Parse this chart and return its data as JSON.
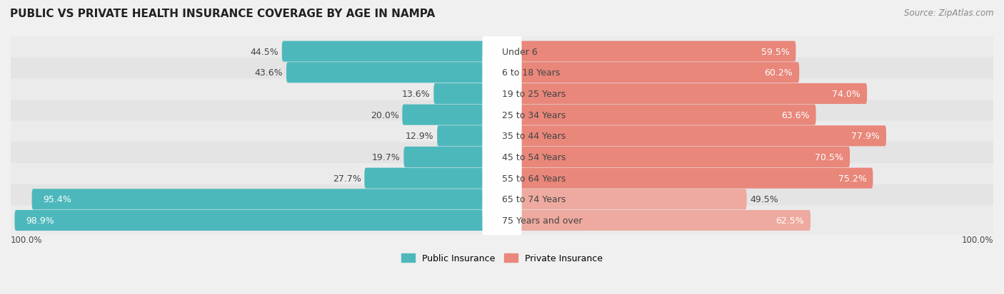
{
  "title": "PUBLIC VS PRIVATE HEALTH INSURANCE COVERAGE BY AGE IN NAMPA",
  "source": "Source: ZipAtlas.com",
  "categories": [
    "Under 6",
    "6 to 18 Years",
    "19 to 25 Years",
    "25 to 34 Years",
    "35 to 44 Years",
    "45 to 54 Years",
    "55 to 64 Years",
    "65 to 74 Years",
    "75 Years and over"
  ],
  "public_values": [
    44.5,
    43.6,
    13.6,
    20.0,
    12.9,
    19.7,
    27.7,
    95.4,
    98.9
  ],
  "private_values": [
    59.5,
    60.2,
    74.0,
    63.6,
    77.9,
    70.5,
    75.2,
    49.5,
    62.5
  ],
  "public_color": "#4db8bc",
  "private_color_normal": "#e8877a",
  "private_color_light": "#eeaaa0",
  "light_private_rows": [
    7,
    8
  ],
  "bg_color": "#f0f0f0",
  "row_bg_even": "#ebebeb",
  "row_bg_odd": "#e0e0e0",
  "label_dark": "#444444",
  "label_white": "#ffffff",
  "title_fontsize": 11,
  "source_fontsize": 8.5,
  "bar_label_fontsize": 9,
  "category_fontsize": 9,
  "legend_fontsize": 9,
  "axis_label_fontsize": 8.5
}
